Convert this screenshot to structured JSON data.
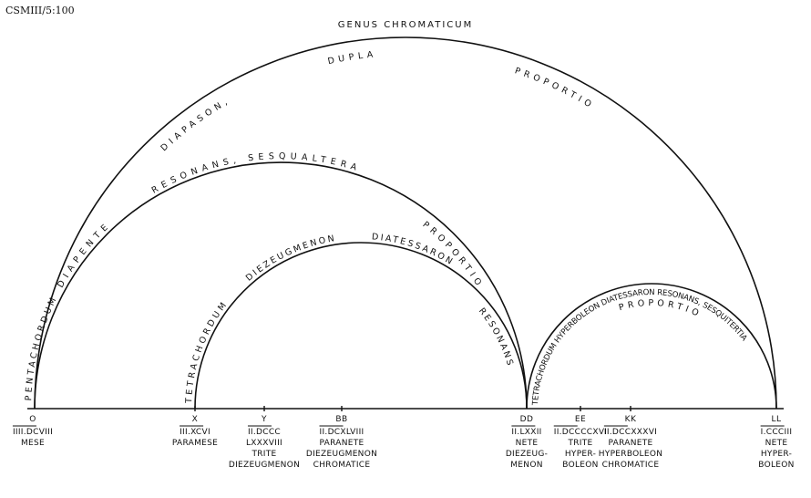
{
  "reference": "CSMIII/5:100",
  "title": "GENUS CHROMATICUM",
  "arc_labels": {
    "diapason": "DIAPASON,",
    "dupla": "DUPLA",
    "proportio_outer": "PROPORTIO",
    "pentachordum": "PENTACHORDUM",
    "diapente": "DIAPENTE",
    "resonans_sesquialtera": "RESONANS, SESQUALTERA",
    "proportio_diapente": "PROPORTIO",
    "tetrachordum_inner": "TETRACHORDUM",
    "diezeugmenon": "DIEZEUGMENON",
    "diatessaron": "DIATESSARON",
    "resonans_inner": "RESONANS",
    "hyperboleon_arc": "TETRACHORDUM HYPERBOLEON DIATESSARON RESONANS, SESQUITERTIA",
    "proportio_small": "PROPORTIO"
  },
  "points": [
    {
      "letter": "O",
      "number": "IIII.DCVIII",
      "lines": [
        "MESE"
      ]
    },
    {
      "letter": "X",
      "number": "III.XCVI",
      "lines": [
        "PARAMESE"
      ]
    },
    {
      "letter": "Y",
      "number": "II.DCCC",
      "lines": [
        "LXXXVIII",
        "TRITE",
        "DIEZEUGMENON"
      ]
    },
    {
      "letter": "BB",
      "number": "II.DCXLVIII",
      "lines": [
        "PARANETE",
        "DIEZEUGMENON",
        "CHROMATICE"
      ]
    },
    {
      "letter": "DD",
      "number": "II.LXXII",
      "lines": [
        "NETE",
        "DIEZEUG-",
        "MENON"
      ]
    },
    {
      "letter": "EE",
      "number": "II.DCCCCXVI",
      "lines": [
        "TRITE",
        "HYPER-",
        "BOLEON"
      ]
    },
    {
      "letter": "KK",
      "number": "II.DCCXXXVI",
      "lines": [
        "PARANETE",
        "HYPERBOLEON",
        "CHROMATICE"
      ]
    },
    {
      "letter": "LL",
      "number": "I.CCCIII",
      "lines": [
        "NETE",
        "HYPER-",
        "BOLEON"
      ]
    }
  ]
}
